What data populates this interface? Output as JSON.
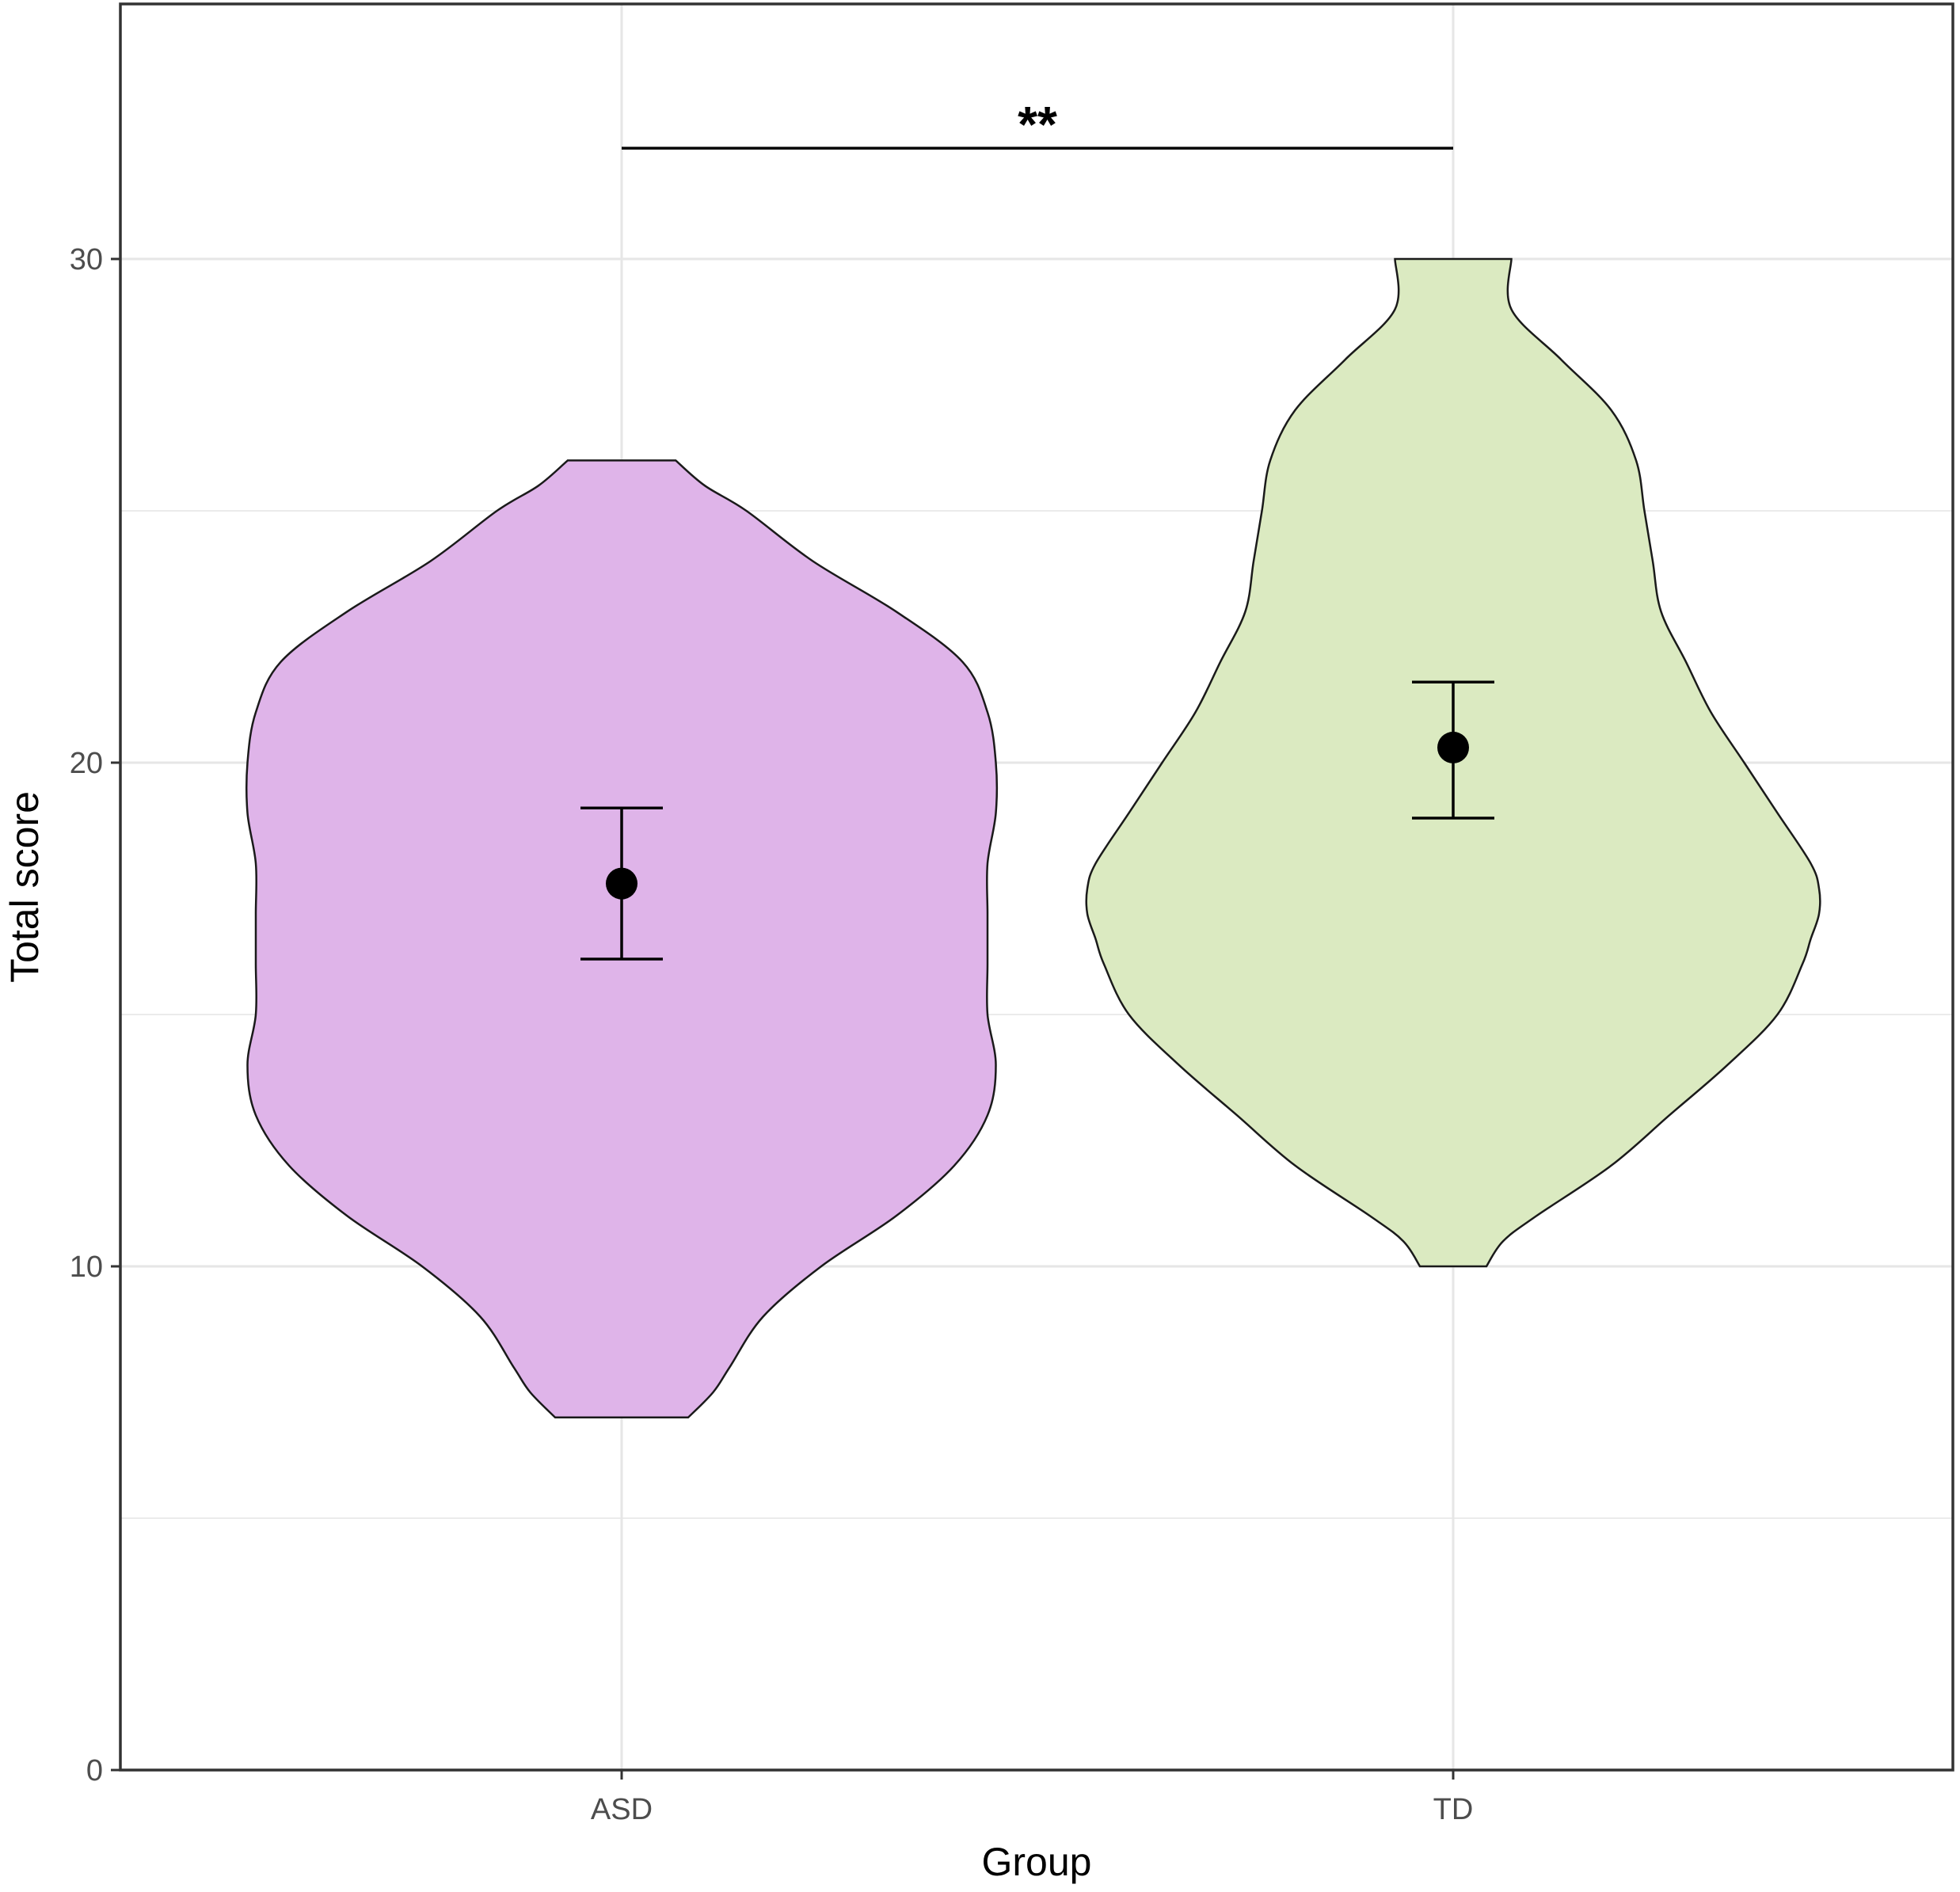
{
  "chart_data": {
    "type": "violin",
    "xlabel": "Group",
    "ylabel": "Total score",
    "categories": [
      "ASD",
      "TD"
    ],
    "ylim": [
      0,
      35
    ],
    "yticks": [
      0,
      10,
      20,
      30
    ],
    "grid": true,
    "significance": {
      "label": "**",
      "from": "ASD",
      "to": "TD",
      "y": 32.2
    },
    "groups": [
      {
        "name": "ASD",
        "fill": "#dfb4e9",
        "mean": 17.6,
        "ci": [
          16.1,
          19.1
        ],
        "min": 7,
        "max": 26,
        "density": [
          {
            "y": 7.0,
            "w": 0.08
          },
          {
            "y": 7.5,
            "w": 0.11
          },
          {
            "y": 8.0,
            "w": 0.13
          },
          {
            "y": 9.0,
            "w": 0.17
          },
          {
            "y": 10.0,
            "w": 0.24
          },
          {
            "y": 11.0,
            "w": 0.33
          },
          {
            "y": 12.0,
            "w": 0.4
          },
          {
            "y": 13.0,
            "w": 0.44
          },
          {
            "y": 14.0,
            "w": 0.45
          },
          {
            "y": 15.0,
            "w": 0.44
          },
          {
            "y": 16.0,
            "w": 0.44
          },
          {
            "y": 17.0,
            "w": 0.44
          },
          {
            "y": 18.0,
            "w": 0.44
          },
          {
            "y": 19.0,
            "w": 0.45
          },
          {
            "y": 20.0,
            "w": 0.45
          },
          {
            "y": 21.0,
            "w": 0.44
          },
          {
            "y": 22.0,
            "w": 0.41
          },
          {
            "y": 23.0,
            "w": 0.33
          },
          {
            "y": 24.0,
            "w": 0.23
          },
          {
            "y": 25.0,
            "w": 0.15
          },
          {
            "y": 25.5,
            "w": 0.1
          },
          {
            "y": 26.0,
            "w": 0.065
          }
        ]
      },
      {
        "name": "TD",
        "fill": "#dbeac1",
        "mean": 20.3,
        "ci": [
          18.9,
          21.6
        ],
        "min": 10,
        "max": 30,
        "density": [
          {
            "y": 10.0,
            "w": 0.04
          },
          {
            "y": 10.5,
            "w": 0.06
          },
          {
            "y": 11.0,
            "w": 0.1
          },
          {
            "y": 12.0,
            "w": 0.19
          },
          {
            "y": 13.0,
            "w": 0.26
          },
          {
            "y": 14.0,
            "w": 0.33
          },
          {
            "y": 15.0,
            "w": 0.39
          },
          {
            "y": 16.0,
            "w": 0.42
          },
          {
            "y": 16.5,
            "w": 0.43
          },
          {
            "y": 17.0,
            "w": 0.44
          },
          {
            "y": 17.5,
            "w": 0.44
          },
          {
            "y": 18.0,
            "w": 0.43
          },
          {
            "y": 19.0,
            "w": 0.39
          },
          {
            "y": 20.0,
            "w": 0.35
          },
          {
            "y": 21.0,
            "w": 0.31
          },
          {
            "y": 22.0,
            "w": 0.28
          },
          {
            "y": 23.0,
            "w": 0.25
          },
          {
            "y": 24.0,
            "w": 0.24
          },
          {
            "y": 25.0,
            "w": 0.23
          },
          {
            "y": 26.0,
            "w": 0.22
          },
          {
            "y": 27.0,
            "w": 0.19
          },
          {
            "y": 28.0,
            "w": 0.13
          },
          {
            "y": 29.0,
            "w": 0.07
          },
          {
            "y": 30.0,
            "w": 0.07
          }
        ]
      }
    ]
  }
}
